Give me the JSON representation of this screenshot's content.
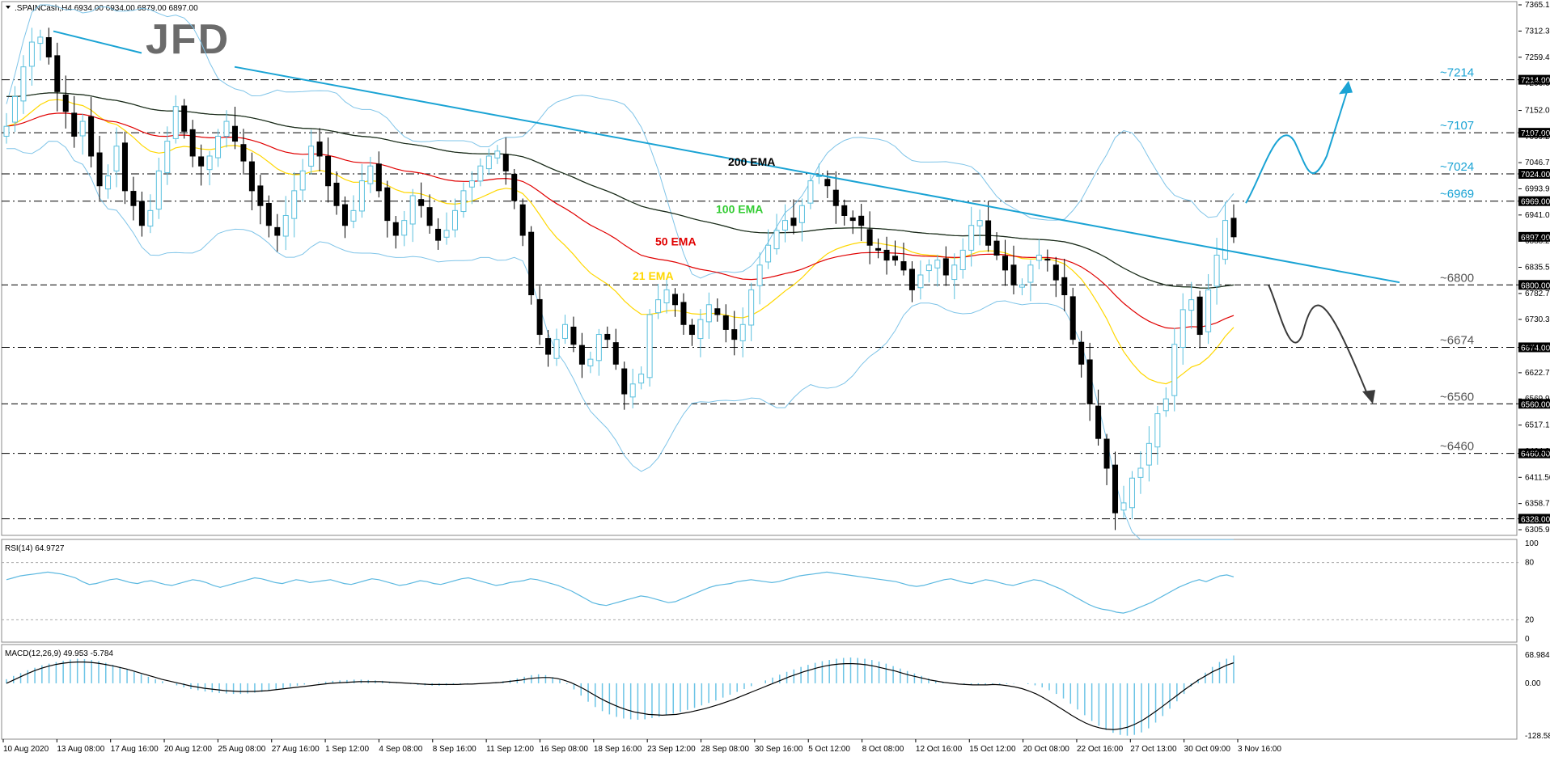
{
  "header": {
    "symbol_line": ".SPAINCash,H4  6934.00 6934.00 6879.00 6897.00",
    "logo_text": "JFD"
  },
  "colors": {
    "bull_candle": "#5bc0de",
    "bear_candle": "#000000",
    "trendline": "#1aa3d4",
    "ema21": "#ffd700",
    "ema50": "#e00000",
    "ema100": "#33cc33",
    "ema200": "#222222",
    "bollinger": "#7fc4e8",
    "rsi": "#5bb8e0",
    "macd_hist": "#6cc4e6",
    "macd_signal": "#000000",
    "level_line": "#000000",
    "price_tag_bg": "#000000",
    "arrow_up": "#1aa3d4",
    "arrow_down": "#3a3a3a"
  },
  "main_panel": {
    "price_axis_ticks": [
      "7365.15",
      "7312.30",
      "7259.45",
      "7206.60",
      "7152.05",
      "7099.20",
      "7046.70",
      "6993.90",
      "6941.05",
      "6888.20",
      "6835.50",
      "6782.70",
      "6730.30",
      "6677.15",
      "6622.70",
      "6569.90",
      "6517.10",
      "6464.20",
      "6411.50",
      "6358.70",
      "6305.90"
    ],
    "levels": [
      {
        "price": 7214,
        "label": "~7214",
        "tag": "7214.00",
        "style": "dashdot"
      },
      {
        "price": 7107,
        "label": "~7107",
        "tag": "7107.00",
        "style": "dashdot"
      },
      {
        "price": 7024,
        "label": "~7024",
        "tag": "7024.00",
        "style": "dashdot"
      },
      {
        "price": 6969,
        "label": "~6969",
        "tag": "6969.00",
        "style": "dashdot"
      },
      {
        "price": 6800,
        "label": "~6800",
        "tag": "6800.00",
        "style": "dash"
      },
      {
        "price": 6674,
        "label": "~6674",
        "tag": "6674.00",
        "style": "dashdot"
      },
      {
        "price": 6560,
        "label": "~6560",
        "tag": "6560.00",
        "style": "dash"
      },
      {
        "price": 6460,
        "label": "~6460",
        "tag": "6460.00",
        "style": "dashdot"
      },
      {
        "price": 6328,
        "label": "",
        "tag": "6328.00",
        "style": "dashdot"
      }
    ],
    "current_price_tag": "6897.00",
    "ema_labels": [
      {
        "text": "200 EMA",
        "color": "#000000"
      },
      {
        "text": "100 EMA",
        "color": "#33cc33"
      },
      {
        "text": "50 EMA",
        "color": "#e00000"
      },
      {
        "text": "21 EMA",
        "color": "#ffd700"
      }
    ]
  },
  "rsi_panel": {
    "label": "RSI(14) 64.9727",
    "ticks": [
      "100",
      "80",
      "20",
      "0"
    ],
    "levels": [
      80,
      20
    ],
    "values": [
      62,
      64,
      66,
      67,
      68,
      69,
      70,
      69,
      68,
      66,
      64,
      60,
      57,
      58,
      60,
      62,
      63,
      61,
      59,
      58,
      60,
      61,
      59,
      57,
      56,
      58,
      60,
      62,
      61,
      59,
      56,
      54,
      56,
      58,
      60,
      62,
      64,
      63,
      61,
      59,
      58,
      60,
      62,
      61,
      59,
      60,
      61,
      62,
      60,
      58,
      57,
      59,
      61,
      63,
      62,
      60,
      58,
      56,
      57,
      59,
      61,
      60,
      58,
      57,
      59,
      61,
      63,
      64,
      62,
      60,
      58,
      56,
      57,
      59,
      60,
      61,
      63,
      62,
      60,
      58,
      56,
      53,
      50,
      46,
      42,
      38,
      36,
      35,
      37,
      39,
      41,
      43,
      45,
      44,
      42,
      40,
      38,
      39,
      42,
      45,
      48,
      51,
      54,
      56,
      57,
      58,
      60,
      61,
      62,
      61,
      60,
      59,
      60,
      62,
      64,
      66,
      67,
      68,
      69,
      70,
      69,
      68,
      67,
      66,
      65,
      64,
      63,
      62,
      61,
      60,
      58,
      56,
      55,
      56,
      58,
      60,
      62,
      63,
      61,
      59,
      58,
      60,
      62,
      61,
      59,
      57,
      56,
      58,
      60,
      62,
      61,
      58,
      55,
      52,
      48,
      44,
      40,
      36,
      33,
      31,
      30,
      28,
      27,
      29,
      32,
      35,
      38,
      42,
      46,
      50,
      54,
      57,
      60,
      62,
      60,
      63,
      66,
      67,
      65
    ],
    "series_name": "RSI(14)"
  },
  "macd_panel": {
    "label": "MACD(12,26,9) 49.953 -5.784",
    "ticks": [
      "68.984",
      "0.00",
      "-128.583"
    ],
    "histogram": [
      10,
      18,
      25,
      32,
      38,
      44,
      48,
      52,
      55,
      58,
      60,
      59,
      57,
      54,
      50,
      45,
      40,
      34,
      28,
      22,
      16,
      10,
      5,
      0,
      -5,
      -10,
      -14,
      -17,
      -20,
      -22,
      -24,
      -25,
      -26,
      -26,
      -25,
      -23,
      -21,
      -18,
      -15,
      -12,
      -9,
      -6,
      -3,
      0,
      2,
      4,
      6,
      7,
      8,
      9,
      9,
      8,
      7,
      6,
      4,
      2,
      0,
      -2,
      -4,
      -5,
      -6,
      -6,
      -5,
      -4,
      -3,
      -2,
      -1,
      0,
      1,
      3,
      5,
      8,
      12,
      16,
      20,
      22,
      20,
      15,
      8,
      -2,
      -15,
      -30,
      -45,
      -58,
      -68,
      -76,
      -82,
      -86,
      -88,
      -89,
      -88,
      -85,
      -82,
      -78,
      -74,
      -70,
      -65,
      -60,
      -54,
      -48,
      -42,
      -35,
      -28,
      -21,
      -14,
      -7,
      0,
      7,
      14,
      21,
      28,
      34,
      40,
      45,
      50,
      54,
      57,
      60,
      62,
      63,
      62,
      60,
      57,
      53,
      48,
      42,
      36,
      30,
      24,
      18,
      12,
      7,
      3,
      0,
      -2,
      -3,
      -4,
      -5,
      -5,
      -4,
      -3,
      -2,
      -1,
      0,
      -2,
      -5,
      -10,
      -17,
      -26,
      -37,
      -50,
      -64,
      -78,
      -92,
      -104,
      -114,
      -121,
      -126,
      -128,
      -126,
      -120,
      -110,
      -96,
      -80,
      -62,
      -44,
      -26,
      -8,
      10,
      26,
      40,
      52,
      60,
      68
    ],
    "signal": [
      0,
      8,
      16,
      24,
      31,
      37,
      42,
      46,
      49,
      51,
      52,
      52,
      51,
      49,
      46,
      43,
      39,
      35,
      30,
      25,
      20,
      15,
      10,
      6,
      2,
      -2,
      -6,
      -9,
      -12,
      -14,
      -16,
      -18,
      -19,
      -20,
      -20,
      -20,
      -19,
      -18,
      -16,
      -14,
      -12,
      -10,
      -8,
      -6,
      -4,
      -2,
      0,
      1,
      2,
      3,
      4,
      4,
      4,
      4,
      3,
      2,
      1,
      0,
      -1,
      -2,
      -3,
      -3,
      -3,
      -3,
      -3,
      -2,
      -2,
      -1,
      0,
      1,
      2,
      4,
      6,
      8,
      11,
      13,
      14,
      14,
      12,
      8,
      2,
      -6,
      -15,
      -25,
      -35,
      -44,
      -52,
      -59,
      -65,
      -70,
      -73,
      -76,
      -77,
      -78,
      -77,
      -76,
      -73,
      -70,
      -66,
      -62,
      -57,
      -52,
      -46,
      -40,
      -33,
      -26,
      -19,
      -12,
      -5,
      2,
      9,
      16,
      22,
      28,
      33,
      38,
      42,
      45,
      47,
      48,
      48,
      47,
      45,
      42,
      38,
      34,
      30,
      25,
      20,
      16,
      12,
      8,
      5,
      2,
      0,
      -2,
      -3,
      -4,
      -4,
      -4,
      -3,
      -4,
      -6,
      -9,
      -13,
      -19,
      -26,
      -35,
      -45,
      -56,
      -67,
      -78,
      -88,
      -97,
      -104,
      -109,
      -112,
      -113,
      -111,
      -107,
      -100,
      -91,
      -80,
      -68,
      -55,
      -42,
      -29,
      -16,
      -4,
      8,
      18,
      28,
      36,
      44,
      50
    ],
    "series_name": "MACD(12,26,9)"
  },
  "x_axis": {
    "labels": [
      "10 Aug 2020",
      "13 Aug 08:00",
      "17 Aug 16:00",
      "20 Aug 12:00",
      "25 Aug 08:00",
      "27 Aug 16:00",
      "1 Sep 12:00",
      "4 Sep 08:00",
      "8 Sep 16:00",
      "11 Sep 12:00",
      "16 Sep 08:00",
      "18 Sep 16:00",
      "23 Sep 12:00",
      "28 Sep 08:00",
      "30 Sep 16:00",
      "5 Oct 12:00",
      "8 Oct 08:00",
      "12 Oct 16:00",
      "15 Oct 12:00",
      "20 Oct 08:00",
      "22 Oct 16:00",
      "27 Oct 13:00",
      "30 Oct 09:00",
      "3 Nov 16:00"
    ]
  },
  "chart_data": {
    "type": "candlestick",
    "title": ".SPAINCash,H4",
    "last_bar": {
      "open": 6934.0,
      "high": 6934.0,
      "low": 6879.0,
      "close": 6897.0
    },
    "closes": [
      7120,
      7180,
      7240,
      7290,
      7300,
      7260,
      7190,
      7150,
      7100,
      7130,
      7060,
      7000,
      7020,
      7080,
      6990,
      6960,
      6920,
      6950,
      7030,
      7090,
      7160,
      7110,
      7060,
      7040,
      7060,
      7100,
      7130,
      7090,
      7050,
      6990,
      6960,
      6920,
      6900,
      6940,
      6990,
      7030,
      7080,
      7060,
      7000,
      6960,
      6920,
      6950,
      7010,
      7040,
      6990,
      6930,
      6900,
      6930,
      6980,
      6960,
      6920,
      6890,
      6910,
      6950,
      6990,
      7010,
      7040,
      7060,
      7070,
      7030,
      6970,
      6900,
      6780,
      6700,
      6660,
      6690,
      6720,
      6680,
      6640,
      6650,
      6700,
      6690,
      6640,
      6580,
      6600,
      6620,
      6740,
      6770,
      6790,
      6760,
      6720,
      6700,
      6730,
      6760,
      6740,
      6710,
      6690,
      6720,
      6790,
      6840,
      6880,
      6910,
      6930,
      6920,
      6960,
      7010,
      7020,
      7000,
      6960,
      6940,
      6930,
      6920,
      6880,
      6870,
      6850,
      6850,
      6830,
      6790,
      6820,
      6840,
      6850,
      6820,
      6840,
      6870,
      6920,
      6930,
      6880,
      6860,
      6830,
      6800,
      6800,
      6840,
      6860,
      6850,
      6810,
      6780,
      6690,
      6640,
      6560,
      6490,
      6430,
      6340,
      6360,
      6410,
      6430,
      6480,
      6540,
      6570,
      6680,
      6750,
      6770,
      6700,
      6790,
      6860,
      6930,
      6897
    ]
  },
  "annotations": {
    "arrow_up_label": "bullish scenario",
    "arrow_down_label": "bearish scenario"
  }
}
